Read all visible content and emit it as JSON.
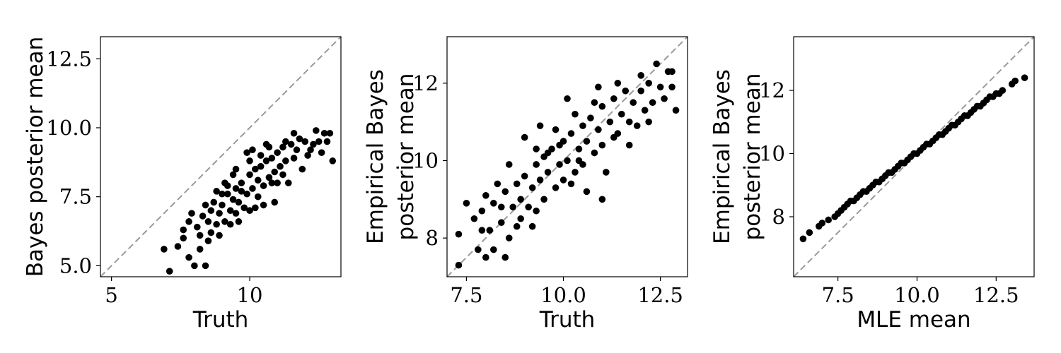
{
  "chart_data": [
    {
      "type": "scatter",
      "title": "",
      "xlabel": "Truth",
      "ylabel": [
        "Bayes posterior mean"
      ],
      "xlim": [
        4.6,
        13.3
      ],
      "ylim": [
        4.6,
        13.3
      ],
      "xticks": [
        5,
        10
      ],
      "xtick_labels": [
        "5",
        "10"
      ],
      "yticks": [
        5.0,
        7.5,
        10.0,
        12.5
      ],
      "ytick_labels": [
        "5.0",
        "7.5",
        "10.0",
        "12.5"
      ],
      "reference_line": "y = x, gray dashed",
      "grid": false,
      "marker_color": "#000000",
      "series": [
        {
          "points": [
            [
              7.1,
              4.8
            ],
            [
              6.9,
              5.6
            ],
            [
              7.4,
              5.7
            ],
            [
              7.6,
              6.0
            ],
            [
              7.8,
              5.3
            ],
            [
              8.0,
              5.0
            ],
            [
              8.2,
              5.6
            ],
            [
              8.4,
              5.0
            ],
            [
              8.1,
              6.4
            ],
            [
              8.5,
              5.9
            ],
            [
              7.6,
              6.3
            ],
            [
              7.8,
              6.6
            ],
            [
              8.3,
              6.8
            ],
            [
              8.6,
              6.2
            ],
            [
              8.8,
              6.5
            ],
            [
              8.9,
              6.9
            ],
            [
              9.0,
              7.2
            ],
            [
              9.1,
              6.6
            ],
            [
              9.2,
              7.6
            ],
            [
              9.3,
              7.0
            ],
            [
              8.7,
              7.3
            ],
            [
              9.4,
              7.4
            ],
            [
              9.5,
              6.9
            ],
            [
              9.5,
              7.8
            ],
            [
              9.6,
              7.3
            ],
            [
              9.7,
              8.0
            ],
            [
              9.8,
              7.1
            ],
            [
              9.9,
              7.6
            ],
            [
              10.0,
              8.3
            ],
            [
              10.0,
              7.0
            ],
            [
              10.1,
              7.8
            ],
            [
              10.2,
              8.5
            ],
            [
              10.3,
              7.5
            ],
            [
              10.3,
              8.1
            ],
            [
              10.4,
              8.6
            ],
            [
              10.5,
              7.9
            ],
            [
              10.6,
              8.8
            ],
            [
              10.7,
              8.2
            ],
            [
              10.8,
              8.9
            ],
            [
              10.9,
              8.4
            ],
            [
              11.0,
              9.1
            ],
            [
              11.1,
              8.6
            ],
            [
              11.2,
              9.3
            ],
            [
              11.3,
              8.8
            ],
            [
              11.5,
              9.4
            ],
            [
              11.6,
              8.9
            ],
            [
              11.8,
              9.6
            ],
            [
              12.0,
              9.5
            ],
            [
              12.2,
              9.2
            ],
            [
              12.4,
              9.9
            ],
            [
              12.5,
              9.5
            ],
            [
              12.7,
              9.8
            ],
            [
              12.9,
              9.8
            ],
            [
              13.0,
              8.8
            ],
            [
              12.1,
              9.0
            ],
            [
              11.9,
              8.5
            ],
            [
              11.4,
              8.0
            ],
            [
              10.9,
              7.3
            ],
            [
              10.5,
              7.2
            ],
            [
              9.9,
              9.1
            ],
            [
              9.2,
              7.9
            ],
            [
              8.8,
              7.7
            ],
            [
              8.4,
              7.2
            ],
            [
              8.9,
              6.1
            ],
            [
              9.6,
              6.6
            ],
            [
              10.2,
              7.1
            ],
            [
              11.0,
              8.0
            ],
            [
              11.6,
              9.8
            ],
            [
              10.6,
              9.4
            ],
            [
              10.0,
              8.8
            ],
            [
              9.4,
              8.3
            ],
            [
              8.6,
              7.0
            ],
            [
              8.2,
              6.1
            ],
            [
              7.9,
              6.9
            ],
            [
              9.1,
              8.0
            ],
            [
              10.4,
              9.0
            ],
            [
              11.3,
              9.5
            ],
            [
              12.3,
              9.4
            ],
            [
              12.6,
              9.1
            ],
            [
              11.7,
              9.2
            ],
            [
              9.7,
              7.7
            ],
            [
              9.3,
              6.5
            ],
            [
              10.8,
              8.0
            ],
            [
              10.1,
              9.2
            ],
            [
              8.5,
              6.6
            ],
            [
              9.0,
              7.6
            ],
            [
              11.2,
              8.3
            ],
            [
              12.8,
              9.5
            ],
            [
              10.7,
              9.3
            ],
            [
              9.5,
              8.5
            ]
          ]
        }
      ]
    },
    {
      "type": "scatter",
      "title": "",
      "xlabel": "Truth",
      "ylabel": [
        "Empirical Bayes",
        "posterior mean"
      ],
      "xlim": [
        7.0,
        13.2
      ],
      "ylim": [
        7.0,
        13.2
      ],
      "xticks": [
        7.5,
        10.0,
        12.5
      ],
      "xtick_labels": [
        "7.5",
        "10.0",
        "12.5"
      ],
      "yticks": [
        8,
        10,
        12
      ],
      "ytick_labels": [
        "8",
        "10",
        "12"
      ],
      "reference_line": "y = x, gray dashed",
      "grid": false,
      "marker_color": "#000000",
      "series": [
        {
          "points": [
            [
              7.3,
              7.3
            ],
            [
              7.3,
              8.1
            ],
            [
              7.5,
              8.9
            ],
            [
              7.7,
              8.5
            ],
            [
              7.8,
              7.7
            ],
            [
              7.9,
              8.7
            ],
            [
              8.0,
              7.5
            ],
            [
              8.1,
              8.2
            ],
            [
              8.2,
              8.9
            ],
            [
              8.2,
              7.7
            ],
            [
              8.4,
              8.4
            ],
            [
              8.5,
              7.5
            ],
            [
              8.5,
              9.2
            ],
            [
              8.6,
              8.0
            ],
            [
              8.7,
              8.8
            ],
            [
              8.8,
              9.4
            ],
            [
              8.9,
              8.5
            ],
            [
              8.9,
              9.0
            ],
            [
              9.0,
              9.6
            ],
            [
              9.1,
              8.8
            ],
            [
              9.2,
              9.3
            ],
            [
              9.3,
              9.9
            ],
            [
              9.3,
              8.7
            ],
            [
              9.4,
              9.5
            ],
            [
              9.5,
              10.1
            ],
            [
              9.5,
              9.0
            ],
            [
              9.6,
              9.7
            ],
            [
              9.7,
              10.3
            ],
            [
              9.8,
              9.3
            ],
            [
              9.9,
              9.9
            ],
            [
              10.0,
              10.5
            ],
            [
              10.0,
              9.5
            ],
            [
              10.1,
              11.6
            ],
            [
              10.1,
              10.0
            ],
            [
              10.2,
              10.7
            ],
            [
              10.3,
              9.7
            ],
            [
              10.4,
              10.3
            ],
            [
              10.5,
              10.9
            ],
            [
              10.5,
              9.9
            ],
            [
              10.6,
              10.5
            ],
            [
              10.7,
              11.1
            ],
            [
              10.8,
              10.2
            ],
            [
              10.9,
              10.8
            ],
            [
              11.0,
              11.4
            ],
            [
              11.0,
              10.4
            ],
            [
              11.1,
              9.7
            ],
            [
              11.2,
              11.0
            ],
            [
              11.3,
              11.6
            ],
            [
              11.4,
              10.7
            ],
            [
              11.5,
              11.2
            ],
            [
              11.6,
              11.8
            ],
            [
              11.7,
              11.0
            ],
            [
              11.8,
              11.5
            ],
            [
              11.9,
              10.9
            ],
            [
              12.0,
              11.8
            ],
            [
              12.1,
              11.3
            ],
            [
              12.2,
              12.0
            ],
            [
              12.3,
              11.5
            ],
            [
              12.4,
              12.5
            ],
            [
              12.5,
              11.9
            ],
            [
              12.6,
              11.6
            ],
            [
              12.7,
              12.3
            ],
            [
              12.8,
              11.9
            ],
            [
              12.9,
              11.3
            ],
            [
              12.8,
              12.3
            ],
            [
              11.0,
              9.0
            ],
            [
              10.6,
              9.2
            ],
            [
              9.0,
              10.6
            ],
            [
              9.4,
              10.9
            ],
            [
              8.6,
              9.9
            ],
            [
              8.3,
              9.4
            ],
            [
              8.0,
              9.1
            ],
            [
              10.3,
              11.2
            ],
            [
              9.8,
              10.8
            ],
            [
              11.4,
              12.0
            ],
            [
              12.0,
              12.2
            ],
            [
              10.9,
              11.9
            ],
            [
              9.2,
              8.3
            ],
            [
              8.8,
              8.3
            ],
            [
              10.4,
              10.0
            ],
            [
              9.6,
              10.2
            ],
            [
              10.8,
              11.5
            ],
            [
              11.7,
              10.4
            ],
            [
              12.2,
              11.0
            ],
            [
              9.9,
              10.4
            ],
            [
              8.4,
              8.8
            ],
            [
              7.9,
              8.2
            ],
            [
              10.2,
              9.4
            ],
            [
              11.3,
              10.6
            ],
            [
              9.3,
              10.3
            ]
          ]
        }
      ]
    },
    {
      "type": "scatter",
      "title": "",
      "xlabel": "MLE mean",
      "ylabel": [
        "Empirical Bayes",
        "posterior mean"
      ],
      "xlim": [
        6.1,
        13.7
      ],
      "ylim": [
        6.1,
        13.7
      ],
      "xticks": [
        7.5,
        10.0,
        12.5
      ],
      "xtick_labels": [
        "7.5",
        "10.0",
        "12.5"
      ],
      "yticks": [
        8,
        10,
        12
      ],
      "ytick_labels": [
        "8",
        "10",
        "12"
      ],
      "reference_line": "y = x, gray dashed",
      "grid": false,
      "marker_color": "#000000",
      "series": [
        {
          "points": [
            [
              6.4,
              7.3
            ],
            [
              6.6,
              7.5
            ],
            [
              6.9,
              7.7
            ],
            [
              7.0,
              7.8
            ],
            [
              7.2,
              7.9
            ],
            [
              7.4,
              8.0
            ],
            [
              7.5,
              8.1
            ],
            [
              7.6,
              8.2
            ],
            [
              7.7,
              8.3
            ],
            [
              7.8,
              8.4
            ],
            [
              7.9,
              8.5
            ],
            [
              8.0,
              8.5
            ],
            [
              8.1,
              8.6
            ],
            [
              8.2,
              8.7
            ],
            [
              8.3,
              8.8
            ],
            [
              8.4,
              8.8
            ],
            [
              8.5,
              8.9
            ],
            [
              8.6,
              9.0
            ],
            [
              8.7,
              9.1
            ],
            [
              8.8,
              9.1
            ],
            [
              8.9,
              9.2
            ],
            [
              9.0,
              9.3
            ],
            [
              9.1,
              9.4
            ],
            [
              9.2,
              9.4
            ],
            [
              9.3,
              9.5
            ],
            [
              9.4,
              9.6
            ],
            [
              9.5,
              9.7
            ],
            [
              9.6,
              9.7
            ],
            [
              9.7,
              9.8
            ],
            [
              9.8,
              9.9
            ],
            [
              9.9,
              10.0
            ],
            [
              10.0,
              10.0
            ],
            [
              10.1,
              10.1
            ],
            [
              10.2,
              10.2
            ],
            [
              10.3,
              10.3
            ],
            [
              10.4,
              10.3
            ],
            [
              10.5,
              10.4
            ],
            [
              10.6,
              10.5
            ],
            [
              10.7,
              10.6
            ],
            [
              10.8,
              10.6
            ],
            [
              10.9,
              10.7
            ],
            [
              11.0,
              10.8
            ],
            [
              11.1,
              10.9
            ],
            [
              11.2,
              10.9
            ],
            [
              11.3,
              11.0
            ],
            [
              11.4,
              11.1
            ],
            [
              11.5,
              11.2
            ],
            [
              11.6,
              11.2
            ],
            [
              11.7,
              11.3
            ],
            [
              11.8,
              11.4
            ],
            [
              11.9,
              11.5
            ],
            [
              12.0,
              11.5
            ],
            [
              12.1,
              11.6
            ],
            [
              12.2,
              11.7
            ],
            [
              12.3,
              11.8
            ],
            [
              12.4,
              11.8
            ],
            [
              12.5,
              11.9
            ],
            [
              12.6,
              11.9
            ],
            [
              12.7,
              12.0
            ],
            [
              13.0,
              12.2
            ],
            [
              13.1,
              12.3
            ],
            [
              13.4,
              12.4
            ]
          ]
        }
      ]
    }
  ]
}
